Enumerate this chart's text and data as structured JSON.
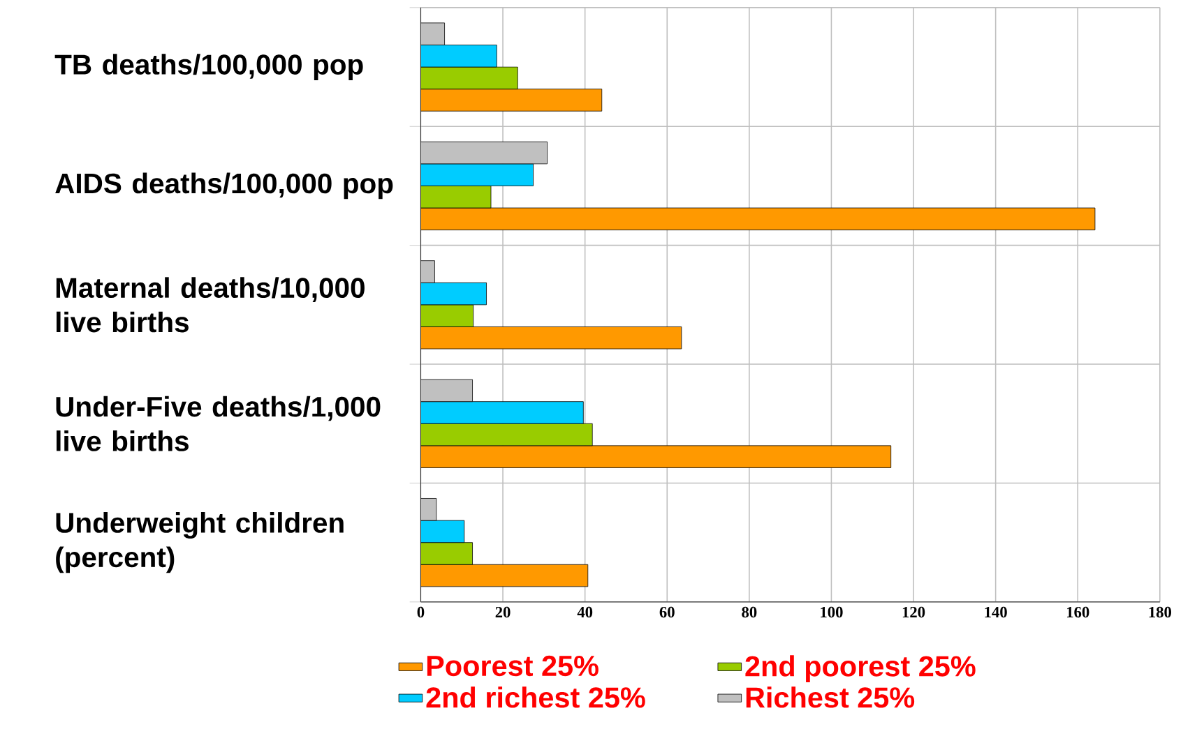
{
  "chart_data": {
    "type": "bar",
    "orientation": "horizontal",
    "categories": [
      "TB deaths/100,000 pop",
      "AIDS deaths/100,000 pop",
      "Maternal deaths/10,000 live births",
      "Under-Five deaths/1,000 live births",
      "Underweight children (percent)"
    ],
    "series": [
      {
        "name": "Poorest 25%",
        "color": "#ff9900",
        "values": [
          44.1,
          164.2,
          63.5,
          114.5,
          40.7
        ]
      },
      {
        "name": "2nd poorest 25%",
        "color": "#99cc00",
        "values": [
          23.6,
          17.1,
          12.8,
          41.8,
          12.6
        ]
      },
      {
        "name": "2nd richest 25%",
        "color": "#00ccff",
        "values": [
          18.5,
          27.4,
          16.0,
          39.6,
          10.6
        ]
      },
      {
        "name": "Richest 25%",
        "color": "#c0c0c0",
        "values": [
          5.8,
          30.8,
          3.4,
          12.6,
          3.8
        ]
      }
    ],
    "xlim": [
      0,
      180
    ],
    "xticks": [
      0,
      20,
      40,
      60,
      80,
      100,
      120,
      140,
      160,
      180
    ],
    "grid": true,
    "legend": "bottom"
  }
}
